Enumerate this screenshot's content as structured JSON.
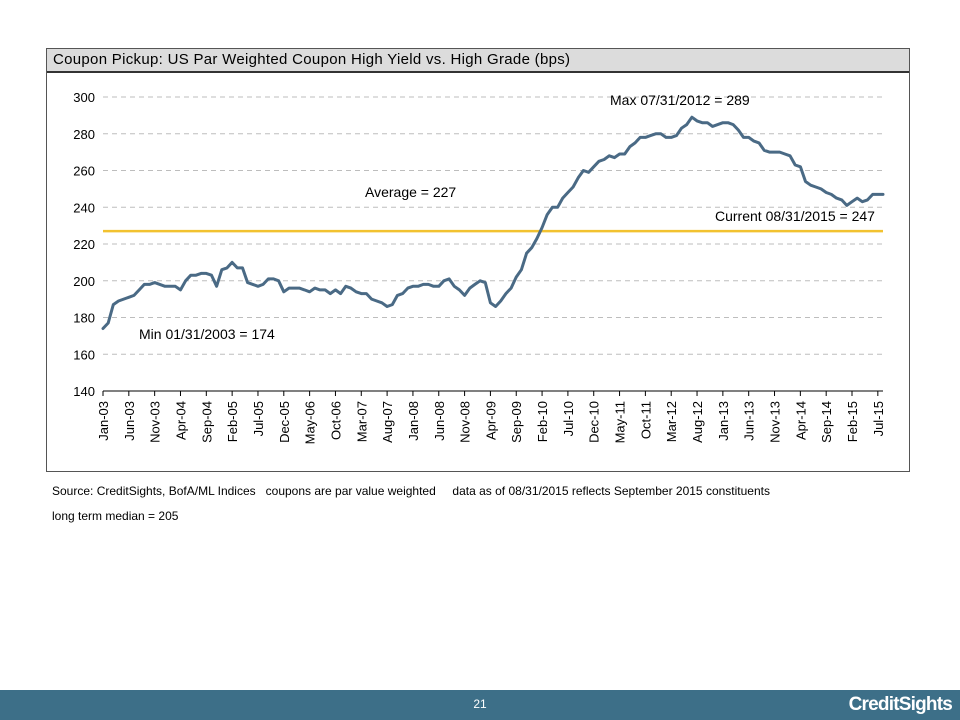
{
  "chart_data": {
    "type": "line",
    "title": "Coupon Pickup: US Par Weighted Coupon High Yield vs. High Grade (bps)",
    "xlabel": "",
    "ylabel": "",
    "ylim": [
      140,
      300
    ],
    "yticks": [
      140,
      160,
      180,
      200,
      220,
      240,
      260,
      280,
      300
    ],
    "grid": "horizontal dashed",
    "x_tick_labels": [
      "Jan-03",
      "Jun-03",
      "Nov-03",
      "Apr-04",
      "Sep-04",
      "Feb-05",
      "Jul-05",
      "Dec-05",
      "May-06",
      "Oct-06",
      "Mar-07",
      "Aug-07",
      "Jan-08",
      "Jun-08",
      "Nov-08",
      "Apr-09",
      "Sep-09",
      "Feb-10",
      "Jul-10",
      "Dec-10",
      "May-11",
      "Oct-11",
      "Mar-12",
      "Aug-12",
      "Jan-13",
      "Jun-13",
      "Nov-13",
      "Apr-14",
      "Sep-14",
      "Feb-15",
      "Jul-15"
    ],
    "x_start": "Jan-03",
    "x_end": "Aug-15",
    "series": [
      {
        "name": "",
        "color": "#4a6a85",
        "values": [
          174,
          177,
          187,
          189,
          190,
          191,
          192,
          195,
          198,
          198,
          199,
          198,
          197,
          197,
          197,
          195,
          200,
          203,
          203,
          204,
          204,
          203,
          197,
          206,
          207,
          210,
          207,
          207,
          199,
          198,
          197,
          198,
          201,
          201,
          200,
          194,
          196,
          196,
          196,
          195,
          194,
          196,
          195,
          195,
          193,
          195,
          193,
          197,
          196,
          194,
          193,
          193,
          190,
          189,
          188,
          186,
          187,
          192,
          193,
          196,
          197,
          197,
          198,
          198,
          197,
          197,
          200,
          201,
          197,
          195,
          192,
          196,
          198,
          200,
          199,
          188,
          186,
          189,
          193,
          196,
          202,
          206,
          215,
          218,
          223,
          229,
          236,
          240,
          240,
          245,
          248,
          251,
          256,
          260,
          259,
          262,
          265,
          266,
          268,
          267,
          269,
          269,
          273,
          275,
          278,
          278,
          279,
          280,
          280,
          278,
          278,
          279,
          283,
          285,
          289,
          287,
          286,
          286,
          284,
          285,
          286,
          286,
          285,
          282,
          278,
          278,
          276,
          275,
          271,
          270,
          270,
          270,
          269,
          268,
          263,
          262,
          254,
          252,
          251,
          250,
          248,
          247,
          245,
          244,
          241,
          243,
          245,
          243,
          244,
          247,
          247,
          247
        ]
      },
      {
        "name": "",
        "color": "#f2c230",
        "values": [
          227,
          227
        ]
      }
    ],
    "annotations": {
      "max": "Max 07/31/2012 = 289",
      "average": "Average = 227",
      "current": "Current 08/31/2015 = 247",
      "min": "Min 01/31/2003 = 174"
    }
  },
  "notes": {
    "source": "Source: CreditSights, BofA/ML Indices   coupons are par value weighted     data as of 08/31/2015 reflects September 2015 constituents",
    "median": "long term median = 205"
  },
  "footer": {
    "page_number": "21",
    "brand": "CreditSights",
    "color": "#3d6f88"
  }
}
